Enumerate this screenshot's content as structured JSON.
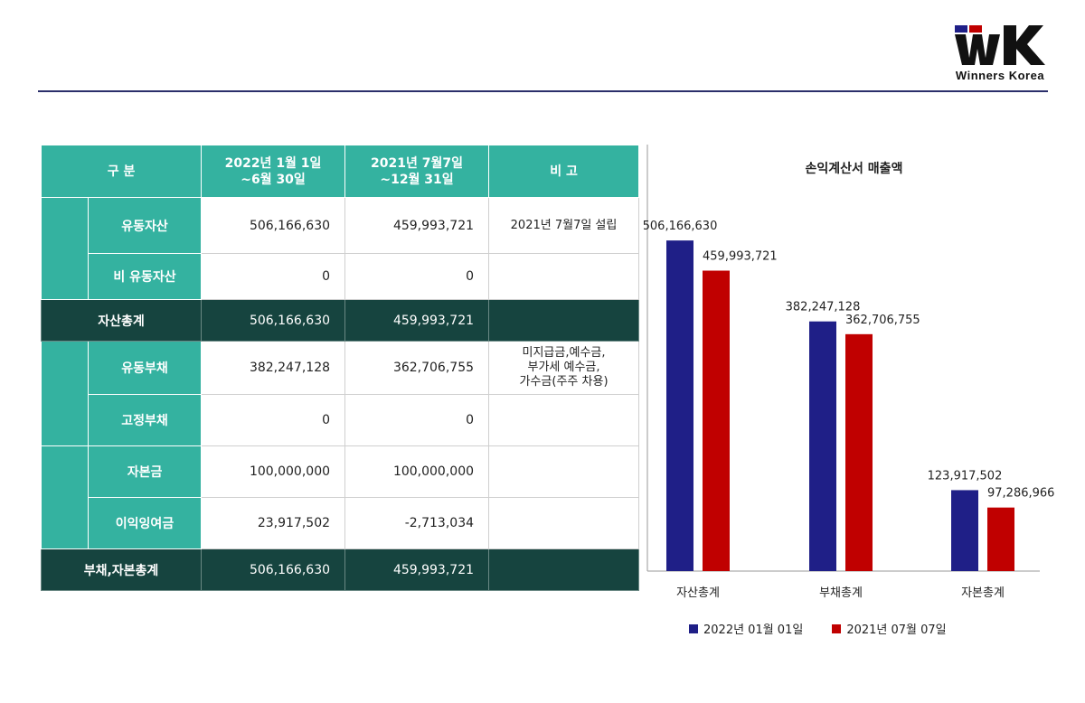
{
  "brand": {
    "logo_mark": "WK",
    "logo_text": "Winners  Korea"
  },
  "table": {
    "headers": [
      "구 분",
      "2022년 1월 1일\n~6월 30일",
      "2021년 7월7일\n~12월 31일",
      "비 고"
    ],
    "rows": {
      "current_assets": {
        "label": "유동자산",
        "v1": "506,166,630",
        "v2": "459,993,721",
        "note": "2021년 7월7일 설립"
      },
      "non_current_assets": {
        "label": "비 유동자산",
        "v1": "0",
        "v2": "0",
        "note": ""
      },
      "total_assets": {
        "label": "자산총계",
        "v1": "506,166,630",
        "v2": "459,993,721",
        "note": ""
      },
      "current_liabilities": {
        "label": "유동부채",
        "v1": "382,247,128",
        "v2": "362,706,755",
        "note": "미지급금,예수금,\n부가세 예수금,\n가수금(주주 차용)"
      },
      "fixed_liabilities": {
        "label": "고정부채",
        "v1": "0",
        "v2": "0",
        "note": ""
      },
      "capital": {
        "label": "자본금",
        "v1": "100,000,000",
        "v2": "100,000,000",
        "note": ""
      },
      "retained_earnings": {
        "label": "이익잉여금",
        "v1": "23,917,502",
        "v2": "-2,713,034",
        "note": ""
      },
      "total_liab_equity": {
        "label": "부채,자본총계",
        "v1": "506,166,630",
        "v2": "459,993,721",
        "note": ""
      }
    }
  },
  "colors": {
    "header_teal": "#34b2a0",
    "total_dark": "#16443f",
    "series1": "#1f1f87",
    "series2": "#c00000"
  },
  "chart_data": {
    "type": "bar",
    "title": "손익계산서 매출액",
    "categories": [
      "자산총계",
      "부채총계",
      "자본총계"
    ],
    "series": [
      {
        "name": "2022년 01월 01일",
        "values": [
          506166630,
          382247128,
          123917502
        ],
        "labels": [
          "506,166,630",
          "382,247,128",
          "123,917,502"
        ]
      },
      {
        "name": "2021년 07월 07일",
        "values": [
          459993721,
          362706755,
          97286966
        ],
        "labels": [
          "459,993,721",
          "362,706,755",
          "97,286,966"
        ]
      }
    ],
    "ylim": [
      0,
      570000000
    ],
    "legend": "bottom",
    "grid": false
  }
}
